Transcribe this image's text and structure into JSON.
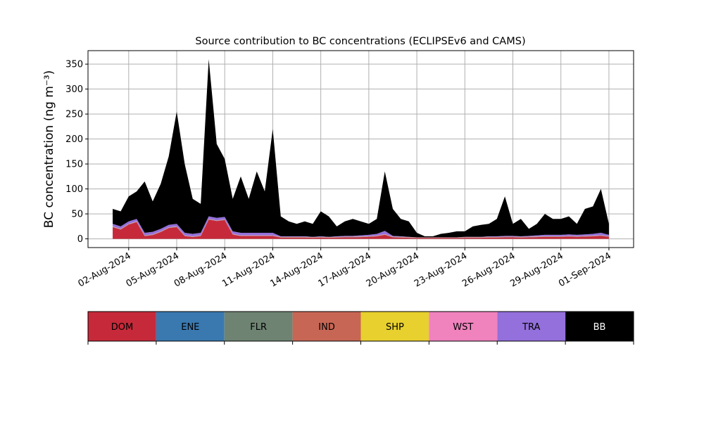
{
  "chart_data": {
    "type": "stacked_area",
    "title": "Source contribution to BC concentrations (ECLIPSEv6 and CAMS)",
    "y_label": "BC concentration (ng m⁻³)",
    "x": [
      "2024-08-01 00:00",
      "2024-08-01 12:00",
      "2024-08-02 00:00",
      "2024-08-02 12:00",
      "2024-08-03 00:00",
      "2024-08-03 12:00",
      "2024-08-04 00:00",
      "2024-08-04 12:00",
      "2024-08-05 00:00",
      "2024-08-05 12:00",
      "2024-08-06 00:00",
      "2024-08-06 12:00",
      "2024-08-07 00:00",
      "2024-08-07 12:00",
      "2024-08-08 00:00",
      "2024-08-08 12:00",
      "2024-08-09 00:00",
      "2024-08-09 12:00",
      "2024-08-10 00:00",
      "2024-08-10 12:00",
      "2024-08-11 00:00",
      "2024-08-11 12:00",
      "2024-08-12 00:00",
      "2024-08-12 12:00",
      "2024-08-13 00:00",
      "2024-08-13 12:00",
      "2024-08-14 00:00",
      "2024-08-14 12:00",
      "2024-08-15 00:00",
      "2024-08-15 12:00",
      "2024-08-16 00:00",
      "2024-08-16 12:00",
      "2024-08-17 00:00",
      "2024-08-17 12:00",
      "2024-08-18 00:00",
      "2024-08-18 12:00",
      "2024-08-19 00:00",
      "2024-08-19 12:00",
      "2024-08-20 00:00",
      "2024-08-20 12:00",
      "2024-08-21 00:00",
      "2024-08-21 12:00",
      "2024-08-22 00:00",
      "2024-08-22 12:00",
      "2024-08-23 00:00",
      "2024-08-23 12:00",
      "2024-08-24 00:00",
      "2024-08-24 12:00",
      "2024-08-25 00:00",
      "2024-08-25 12:00",
      "2024-08-26 00:00",
      "2024-08-26 12:00",
      "2024-08-27 00:00",
      "2024-08-27 12:00",
      "2024-08-28 00:00",
      "2024-08-28 12:00",
      "2024-08-29 00:00",
      "2024-08-29 12:00",
      "2024-08-30 00:00",
      "2024-08-30 12:00",
      "2024-08-31 00:00",
      "2024-08-31 12:00",
      "2024-09-01 00:00"
    ],
    "xlim": [
      "2024-07-30 11:00",
      "2024-09-02 13:00"
    ],
    "xticks": [
      {
        "value": "2024-08-02",
        "label": "02-Aug-2024"
      },
      {
        "value": "2024-08-05",
        "label": "05-Aug-2024"
      },
      {
        "value": "2024-08-08",
        "label": "08-Aug-2024"
      },
      {
        "value": "2024-08-11",
        "label": "11-Aug-2024"
      },
      {
        "value": "2024-08-14",
        "label": "14-Aug-2024"
      },
      {
        "value": "2024-08-17",
        "label": "17-Aug-2024"
      },
      {
        "value": "2024-08-20",
        "label": "20-Aug-2024"
      },
      {
        "value": "2024-08-23",
        "label": "23-Aug-2024"
      },
      {
        "value": "2024-08-26",
        "label": "26-Aug-2024"
      },
      {
        "value": "2024-08-29",
        "label": "29-Aug-2024"
      },
      {
        "value": "2024-09-01",
        "label": "01-Sep-2024"
      }
    ],
    "ylim": [
      -17.5,
      377
    ],
    "yticks": [
      0,
      50,
      100,
      150,
      200,
      250,
      300,
      350
    ],
    "grid": true,
    "series": [
      {
        "name": "DOM",
        "color": "#c62a3a",
        "values": [
          23.6,
          18.6,
          28.6,
          33.6,
          5.6,
          7.6,
          13.6,
          21.6,
          23.6,
          5.6,
          3.6,
          5.6,
          38.6,
          35.6,
          37.6,
          8.6,
          5.6,
          5.6,
          5.6,
          5.6,
          5.6,
          2.5,
          2.5,
          2.5,
          2.5,
          2,
          2.5,
          2,
          2.5,
          3,
          3,
          3.5,
          4,
          5,
          8,
          3,
          2.5,
          2,
          1.5,
          1.5,
          1.5,
          1.5,
          1.5,
          1.5,
          2,
          2,
          2,
          2.5,
          2.5,
          3,
          3,
          2.5,
          3,
          3.5,
          4,
          4,
          4,
          4.5,
          4,
          4.5,
          5,
          6,
          4
        ]
      },
      {
        "name": "ENE",
        "color": "#3a78b0",
        "values": [
          0.3,
          0.3,
          0.3,
          0.3,
          0.3,
          0.3,
          0.3,
          0.3,
          0.3,
          0.3,
          0.3,
          0.3,
          0.3,
          0.3,
          0.3,
          0.3,
          0.3,
          0.3,
          0.3,
          0.3,
          0.3,
          0.3,
          0.3,
          0.3,
          0.3,
          0.3,
          0.3,
          0.3,
          0.3,
          0.3,
          0.3,
          0.3,
          0.3,
          0.3,
          0.3,
          0.3,
          0.3,
          0.3,
          0.3,
          0.3,
          0.3,
          0.3,
          0.3,
          0.3,
          0.3,
          0.3,
          0.3,
          0.3,
          0.3,
          0.3,
          0.3,
          0.3,
          0.3,
          0.3,
          0.3,
          0.3,
          0.3,
          0.3,
          0.3,
          0.3,
          0.3,
          0.3,
          0.3
        ]
      },
      {
        "name": "FLR",
        "color": "#6e8372",
        "values": [
          0.1,
          0.1,
          0.1,
          0.1,
          0.1,
          0.1,
          0.1,
          0.1,
          0.1,
          0.1,
          0.1,
          0.1,
          0.1,
          0.1,
          0.1,
          0.1,
          0.1,
          0.1,
          0.1,
          0.1,
          0.1,
          0.1,
          0.1,
          0.1,
          0.1,
          0.1,
          0.1,
          0.1,
          0.1,
          0.1,
          0.1,
          0.1,
          0.1,
          0.1,
          0.1,
          0.1,
          0.1,
          0.1,
          0.1,
          0.1,
          0.1,
          0.1,
          0.1,
          0.1,
          0.1,
          0.1,
          0.1,
          0.1,
          0.1,
          0.1,
          0.1,
          0.1,
          0.1,
          0.1,
          0.1,
          0.1,
          0.1,
          0.1,
          0.1,
          0.1,
          0.1,
          0.1,
          0.1
        ]
      },
      {
        "name": "IND",
        "color": "#c86655",
        "values": [
          0.5,
          0.5,
          0.5,
          0.5,
          0.5,
          0.5,
          0.5,
          0.5,
          0.5,
          0.5,
          0.5,
          0.5,
          0.5,
          0.5,
          0.5,
          0.5,
          0.5,
          0.5,
          0.5,
          0.5,
          0.5,
          0.5,
          0.5,
          0.5,
          0.5,
          0.5,
          0.5,
          0.5,
          0.5,
          0.5,
          0.5,
          0.5,
          0.5,
          0.5,
          0.5,
          0.5,
          0.5,
          0.5,
          0.5,
          0.5,
          0.5,
          0.5,
          0.5,
          0.5,
          0.5,
          0.5,
          0.5,
          0.5,
          0.5,
          0.5,
          0.5,
          0.5,
          0.5,
          0.5,
          0.5,
          0.5,
          0.5,
          0.5,
          0.5,
          0.5,
          0.5,
          0.5,
          0.5
        ]
      },
      {
        "name": "SHP",
        "color": "#e8d02e",
        "values": [
          0.2,
          0.2,
          0.2,
          0.2,
          0.2,
          0.2,
          0.2,
          0.2,
          0.2,
          0.2,
          0.2,
          0.2,
          0.2,
          0.2,
          0.2,
          0.2,
          0.2,
          0.2,
          0.2,
          0.2,
          0.2,
          0.2,
          0.2,
          0.2,
          0.2,
          0.2,
          0.2,
          0.2,
          0.2,
          0.2,
          0.2,
          0.2,
          0.2,
          0.2,
          0.2,
          0.2,
          0.2,
          0.2,
          0.2,
          0.2,
          0.2,
          0.2,
          0.2,
          0.2,
          0.2,
          0.2,
          0.2,
          0.2,
          0.2,
          0.2,
          0.2,
          0.2,
          0.2,
          0.2,
          0.2,
          0.2,
          0.2,
          0.2,
          0.2,
          0.2,
          0.2,
          0.2,
          0.2
        ]
      },
      {
        "name": "WST",
        "color": "#f082be",
        "values": [
          0.3,
          0.3,
          0.3,
          0.3,
          0.3,
          0.3,
          0.3,
          0.3,
          0.3,
          0.3,
          0.3,
          0.3,
          0.3,
          0.3,
          0.3,
          0.3,
          0.3,
          0.3,
          0.3,
          0.3,
          0.3,
          0.3,
          0.3,
          0.3,
          0.3,
          0.3,
          0.3,
          0.3,
          0.3,
          0.3,
          0.3,
          0.3,
          0.3,
          0.3,
          0.3,
          0.3,
          0.3,
          0.3,
          0.3,
          0.3,
          0.3,
          0.3,
          0.3,
          0.3,
          0.3,
          0.3,
          0.3,
          0.3,
          0.3,
          0.3,
          0.3,
          0.3,
          0.3,
          0.3,
          0.3,
          0.3,
          0.3,
          0.3,
          0.3,
          0.3,
          0.3,
          0.3,
          0.3
        ]
      },
      {
        "name": "TRA",
        "color": "#9370db",
        "values": [
          5,
          5,
          5,
          5,
          5,
          5,
          5,
          5,
          5,
          5,
          5,
          5,
          5,
          5,
          5,
          5,
          5,
          5,
          5,
          5,
          5,
          1.1,
          1.1,
          1.1,
          1.1,
          0.6,
          1.1,
          0.6,
          1.1,
          1.6,
          1.6,
          2.1,
          2.6,
          3.6,
          6.6,
          1.6,
          1.1,
          0.6,
          0.1,
          0.1,
          0.1,
          0.1,
          0.1,
          0.1,
          0.6,
          0.6,
          0.6,
          1.1,
          1.1,
          1.6,
          1.6,
          1.1,
          1.6,
          2.1,
          2.6,
          2.6,
          2.6,
          3.1,
          2.6,
          3.1,
          3.6,
          4.6,
          2.6
        ]
      },
      {
        "name": "BB",
        "color": "#000000",
        "values": [
          30,
          30,
          50,
          55,
          103,
          61,
          90,
          137,
          225,
          138,
          70,
          58,
          315,
          148,
          116,
          65,
          113,
          68,
          123,
          83,
          208,
          40,
          30,
          25,
          30,
          26,
          50,
          41,
          20,
          29,
          34,
          28,
          22,
          30,
          119,
          54,
          35,
          31,
          9,
          2,
          2,
          7,
          9,
          12,
          11,
          21,
          24,
          25,
          35,
          79,
          24,
          35,
          14,
          23,
          42,
          32,
          32,
          36,
          22,
          51,
          55,
          88,
          22
        ]
      }
    ]
  }
}
